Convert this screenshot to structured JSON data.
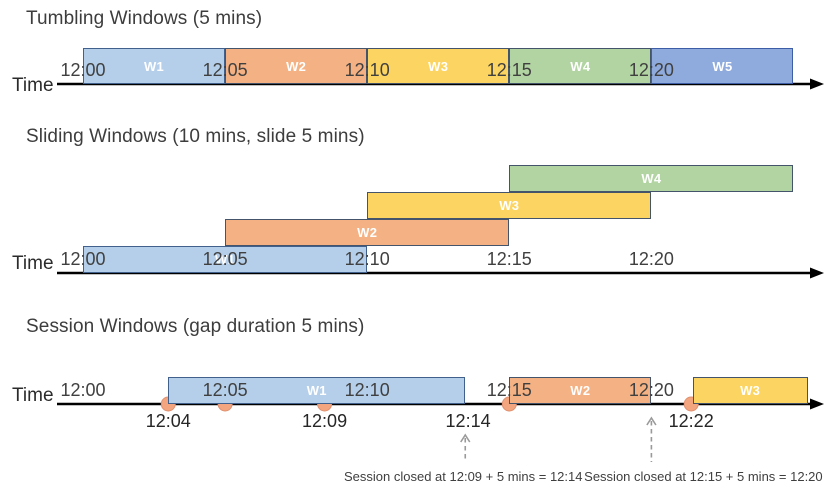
{
  "palette": {
    "blue_light": {
      "fill": "#B5CFEA",
      "border": "#41618C"
    },
    "orange": {
      "fill": "#F4B183",
      "border": "#44546A"
    },
    "yellow": {
      "fill": "#FCD462",
      "border": "#44546A"
    },
    "green": {
      "fill": "#B2D3A2",
      "border": "#44546A"
    },
    "blue_med": {
      "fill": "#8FAADC",
      "border": "#3D5EA6"
    },
    "event_dot": {
      "fill": "#F2A57E",
      "border": "#E09070"
    },
    "axis": "#000000",
    "tick_text": "#404040",
    "annotation_arrow": "#9a9a9a"
  },
  "sections": [
    {
      "id": "tumbling",
      "title": "Tumbling Windows (5 mins)",
      "time_label": "Time",
      "ticks": [
        {
          "min": 0,
          "label": "12:00"
        },
        {
          "min": 5,
          "label": "12:05"
        },
        {
          "min": 10,
          "label": "12:10"
        },
        {
          "min": 15,
          "label": "12:15"
        },
        {
          "min": 20,
          "label": "12:20"
        }
      ],
      "windows": [
        {
          "label": "W1",
          "start_min": 0,
          "end_min": 5,
          "level": 0,
          "color": "blue_light"
        },
        {
          "label": "W2",
          "start_min": 5,
          "end_min": 10,
          "level": 0,
          "color": "orange"
        },
        {
          "label": "W3",
          "start_min": 10,
          "end_min": 15,
          "level": 0,
          "color": "yellow"
        },
        {
          "label": "W4",
          "start_min": 15,
          "end_min": 20,
          "level": 0,
          "color": "green"
        },
        {
          "label": "W5",
          "start_min": 20,
          "end_min": 25,
          "level": 0,
          "color": "blue_med"
        }
      ]
    },
    {
      "id": "sliding",
      "title": "Sliding Windows (10 mins, slide 5 mins)",
      "time_label": "Time",
      "ticks": [
        {
          "min": 0,
          "label": "12:00"
        },
        {
          "min": 5,
          "label": "12:05"
        },
        {
          "min": 10,
          "label": "12:10"
        },
        {
          "min": 15,
          "label": "12:15"
        },
        {
          "min": 20,
          "label": "12:20"
        }
      ],
      "windows": [
        {
          "label": "W1",
          "start_min": 0,
          "end_min": 10,
          "level": 0,
          "color": "blue_light"
        },
        {
          "label": "W2",
          "start_min": 5,
          "end_min": 15,
          "level": 1,
          "color": "orange"
        },
        {
          "label": "W3",
          "start_min": 10,
          "end_min": 20,
          "level": 2,
          "color": "yellow"
        },
        {
          "label": "W4",
          "start_min": 15,
          "end_min": 25,
          "level": 3,
          "color": "green"
        }
      ]
    },
    {
      "id": "session",
      "title": "Session Windows (gap duration 5 mins)",
      "time_label": "Time",
      "ticks": [
        {
          "min": 0,
          "label": "12:00"
        },
        {
          "min": 5,
          "label": "12:05"
        },
        {
          "min": 10,
          "label": "12:10"
        },
        {
          "min": 15,
          "label": "12:15"
        },
        {
          "min": 20,
          "label": "12:20"
        }
      ],
      "windows": [
        {
          "label": "W1",
          "start_min": 3.0,
          "end_min": 13.45,
          "level": 0,
          "color": "blue_light"
        },
        {
          "label": "W2",
          "start_min": 15.0,
          "end_min": 20.0,
          "level": 0,
          "color": "orange"
        },
        {
          "label": "W3",
          "start_min": 21.45,
          "end_min": 25.5,
          "level": 0,
          "color": "yellow"
        }
      ],
      "events": [
        {
          "min": 3.0,
          "label": "12:04"
        },
        {
          "min": 5.0,
          "label": ""
        },
        {
          "min": 8.5,
          "label": "12:09"
        },
        {
          "min": 15.0,
          "label": ""
        },
        {
          "min": 21.4,
          "label": "12:22"
        }
      ],
      "extra_labels": [
        {
          "min": 13.55,
          "label": "12:14"
        }
      ],
      "annotations": [
        {
          "text": "Session closed at 12:09 + 5 mins = 12:14",
          "arrow_min": 13.45,
          "text_center_min": 13.38
        },
        {
          "text": "Session closed at 12:15 + 5 mins = 12:20",
          "arrow_min": 20.0,
          "text_center_min": 21.83
        }
      ]
    }
  ]
}
